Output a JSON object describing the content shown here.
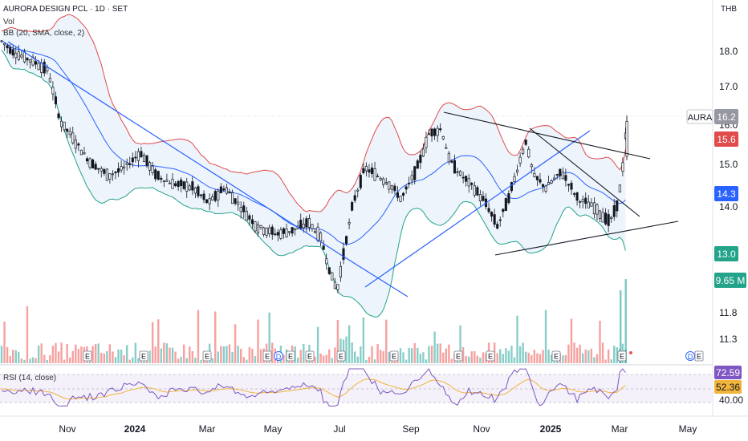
{
  "header": {
    "title": "AURORA DESIGN PCL · 1D · SET",
    "volume_label": "Vol",
    "bb_label": "BB (20, SMA, close, 2)",
    "rsi_label": "RSI (14, close)",
    "currency": "THB"
  },
  "colors": {
    "up": "#26a69a",
    "down": "#ef5350",
    "candle": "#131722",
    "bb_upper": "#e04b4b",
    "bb_lower": "#22a38a",
    "bb_basis": "#2962ff",
    "bb_fill": "#e8f1fb",
    "trendline_blue": "#2962ff",
    "trendline_black": "#131722",
    "rsi": "#7e57c2",
    "rsi_ma": "#f2b53b"
  },
  "chart_data": {
    "type": "candlestick",
    "title": "AURORA DESIGN PCL · 1D · SET",
    "x_ticks": [
      "Nov",
      "2024",
      "Mar",
      "May",
      "Jul",
      "Sep",
      "Nov",
      "2025",
      "Mar",
      "May"
    ],
    "y_ticks": [
      "18.0",
      "17.0",
      "16.0",
      "15.0",
      "14.0",
      "11.8",
      "11.3"
    ],
    "rsi_ticks": [
      "40.00"
    ],
    "price_labels": [
      {
        "id": "symbol",
        "text": "AURA",
        "value": "16.2",
        "color": "#787b86"
      },
      {
        "id": "bb_upper",
        "text": "15.6",
        "color": "#e04b4b"
      },
      {
        "id": "bb_basis",
        "text": "14.3",
        "color": "#2962ff"
      },
      {
        "id": "bb_lower",
        "text": "13.0",
        "color": "#22a38a"
      },
      {
        "id": "volume",
        "text": "9.65 M",
        "color": "#22a38a"
      }
    ],
    "rsi_labels": [
      {
        "id": "rsi",
        "text": "72.59",
        "color": "#7e57c2"
      },
      {
        "id": "rsi_ma",
        "text": "52.36",
        "color": "#f2b53b"
      }
    ],
    "event_markers": [
      "E",
      "E",
      "E",
      "E",
      "D",
      "E",
      "E",
      "E",
      "E",
      "E",
      "E",
      "E",
      "E",
      "D",
      "E"
    ],
    "close_path_points": [
      [
        0,
        18.3
      ],
      [
        15,
        18.0
      ],
      [
        45,
        17.7
      ],
      [
        60,
        17.5
      ],
      [
        75,
        16.2
      ],
      [
        90,
        15.8
      ],
      [
        110,
        15.2
      ],
      [
        135,
        14.8
      ],
      [
        155,
        15.0
      ],
      [
        175,
        15.4
      ],
      [
        195,
        14.8
      ],
      [
        215,
        14.6
      ],
      [
        240,
        14.5
      ],
      [
        260,
        14.1
      ],
      [
        280,
        14.5
      ],
      [
        300,
        14.0
      ],
      [
        320,
        13.5
      ],
      [
        345,
        13.3
      ],
      [
        365,
        13.4
      ],
      [
        385,
        13.6
      ],
      [
        400,
        13.2
      ],
      [
        410,
        12.4
      ],
      [
        420,
        11.85
      ],
      [
        430,
        13.0
      ],
      [
        440,
        14.1
      ],
      [
        455,
        15.0
      ],
      [
        470,
        14.8
      ],
      [
        485,
        14.6
      ],
      [
        500,
        14.2
      ],
      [
        520,
        15.0
      ],
      [
        535,
        15.9
      ],
      [
        550,
        16.0
      ],
      [
        560,
        15.2
      ],
      [
        575,
        14.8
      ],
      [
        590,
        14.5
      ],
      [
        605,
        14.1
      ],
      [
        620,
        13.5
      ],
      [
        635,
        14.3
      ],
      [
        655,
        15.7
      ],
      [
        665,
        14.8
      ],
      [
        680,
        14.5
      ],
      [
        700,
        14.9
      ],
      [
        720,
        14.2
      ],
      [
        740,
        14.0
      ],
      [
        760,
        13.6
      ],
      [
        770,
        14.1
      ],
      [
        777,
        15.2
      ],
      [
        781,
        16.2
      ]
    ],
    "ylim": [
      10.9,
      18.6
    ]
  }
}
